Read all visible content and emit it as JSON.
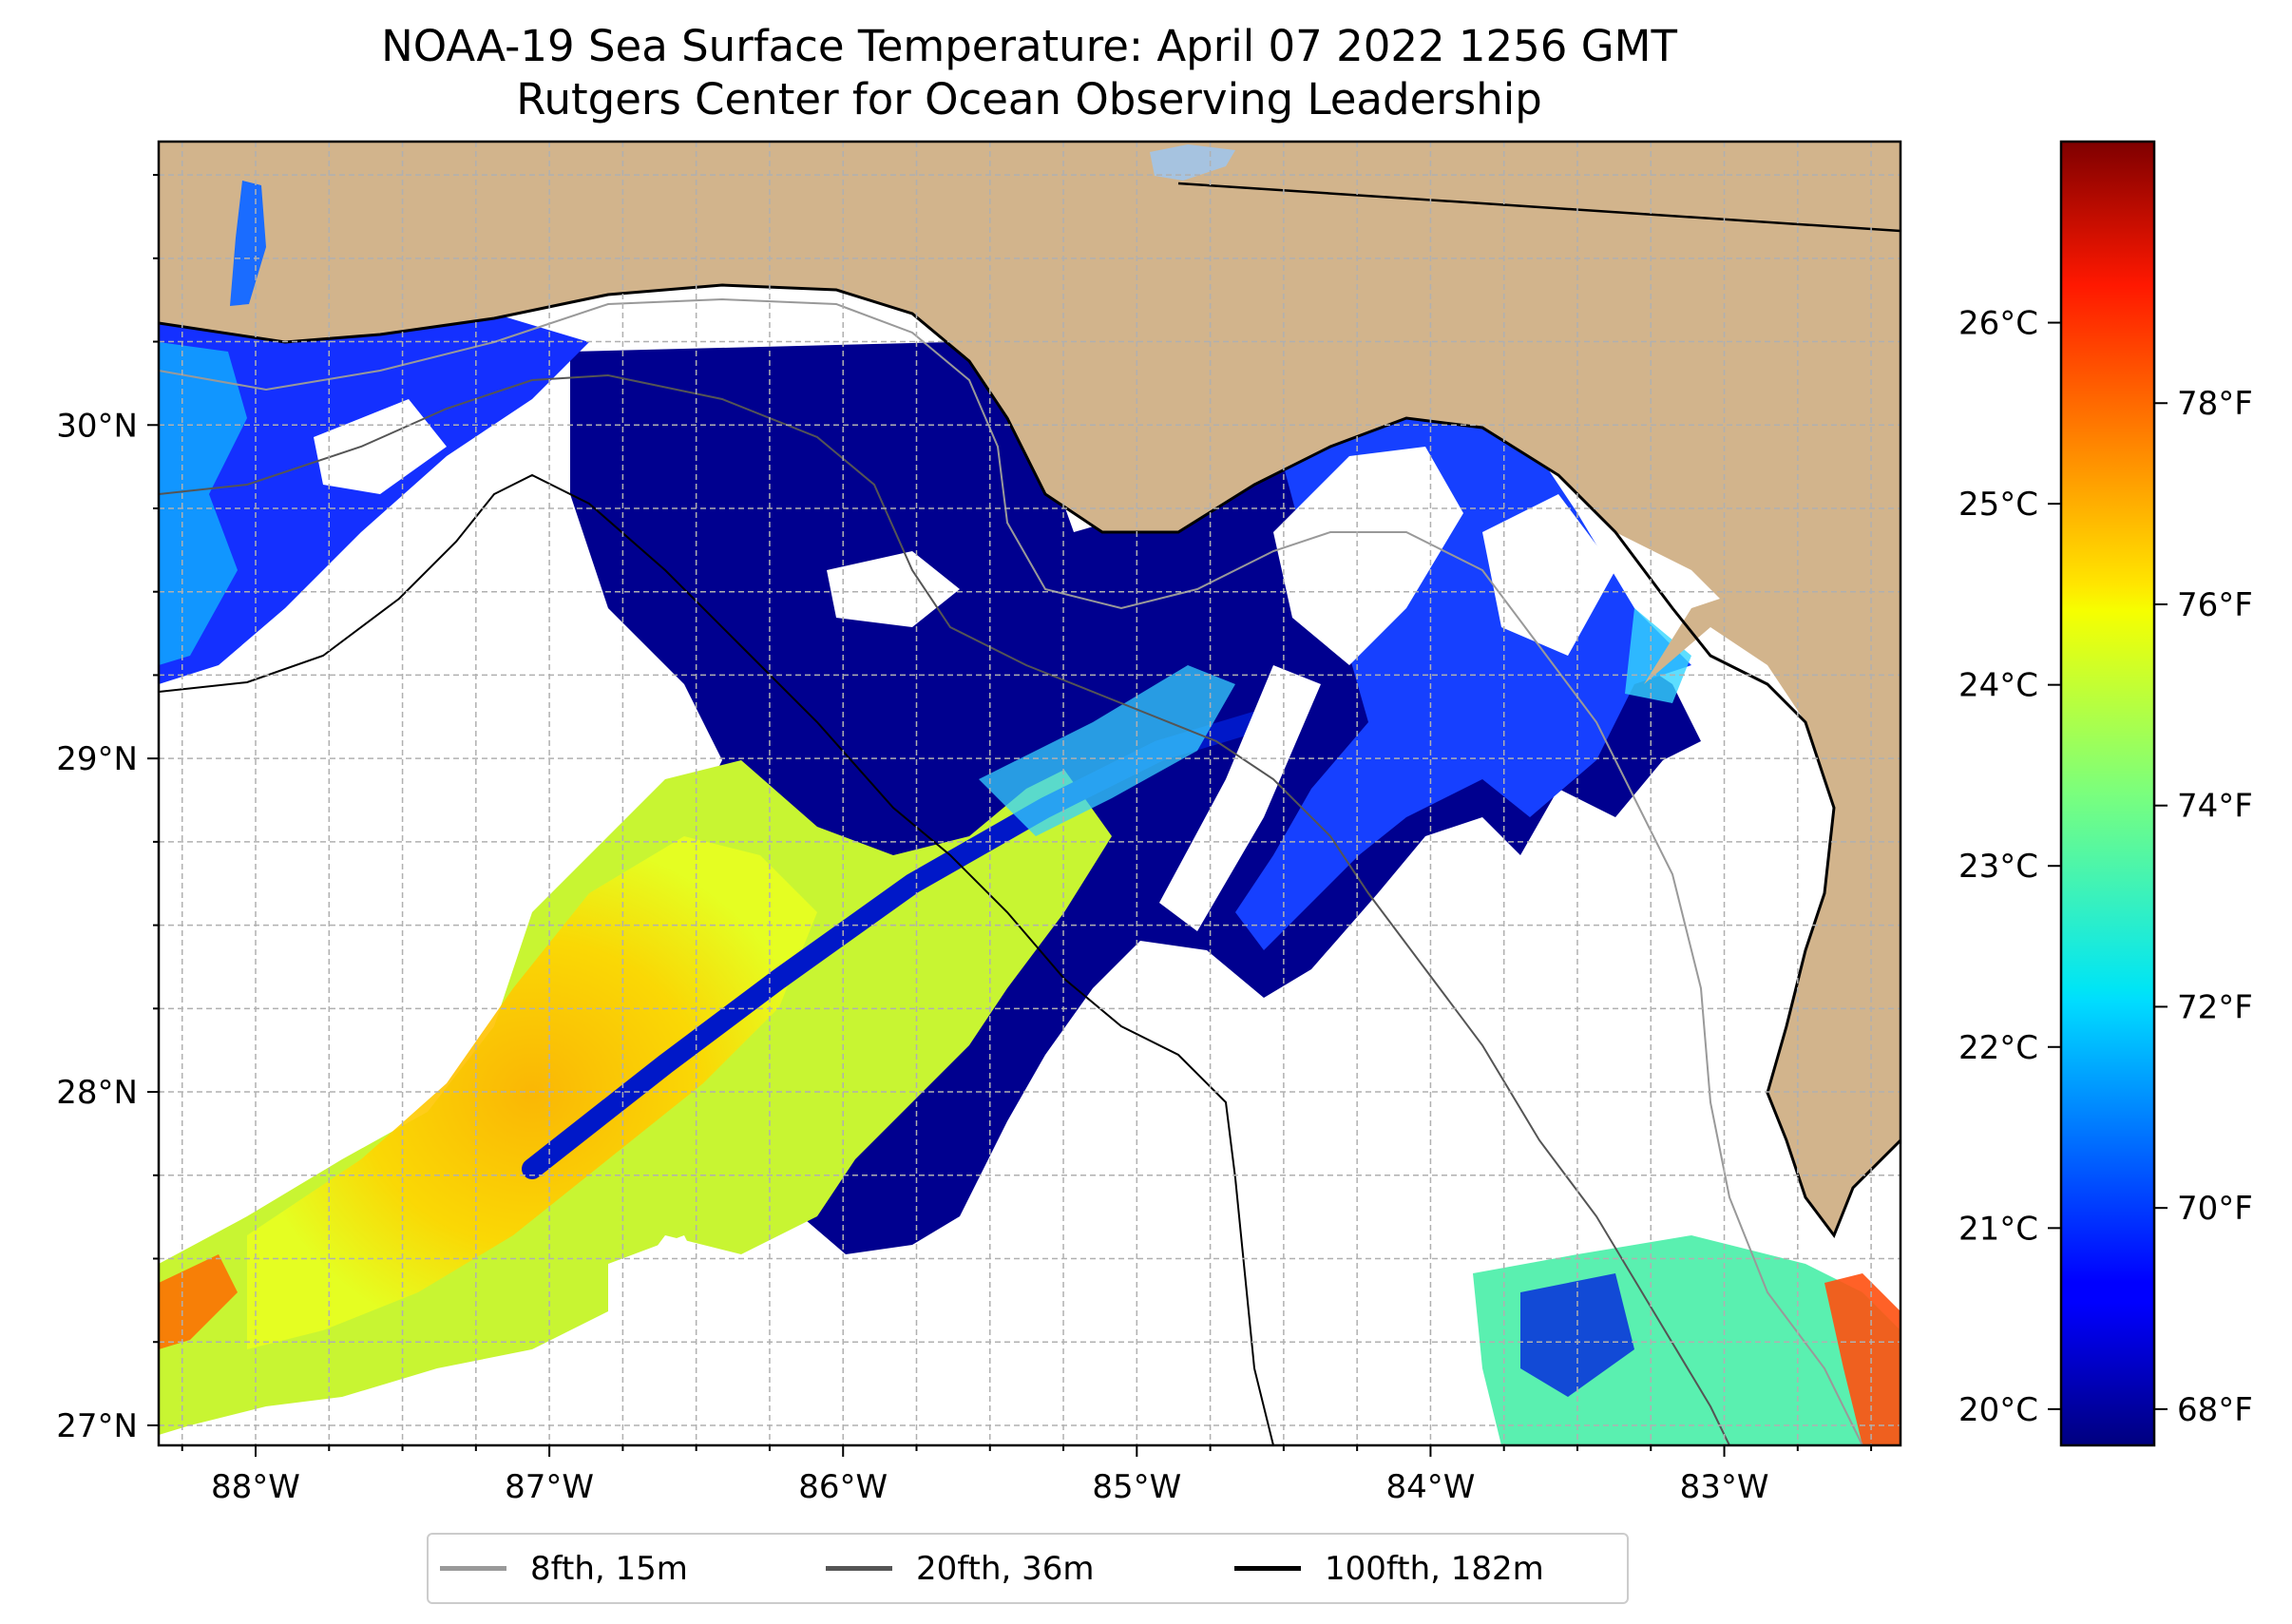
{
  "title": {
    "line1": "NOAA-19 Sea Surface Temperature: April 07 2022 1256 GMT",
    "line2": "Rutgers Center for Ocean Observing Leadership"
  },
  "map": {
    "lon_range": [
      -88.33,
      -82.4
    ],
    "lat_range": [
      26.94,
      30.85
    ],
    "x_ticks": [
      "88°W",
      "87°W",
      "86°W",
      "85°W",
      "84°W",
      "83°W"
    ],
    "x_tick_values": [
      -88,
      -87,
      -86,
      -85,
      -84,
      -83
    ],
    "y_ticks": [
      "27°N",
      "28°N",
      "29°N",
      "30°N"
    ],
    "y_tick_values": [
      27,
      28,
      29,
      30
    ],
    "gridlines": true,
    "colors": {
      "land": "#d2b48c",
      "no_data": "#ffffff",
      "grid": "#b0b0b0",
      "water_body": "#a6c3e0"
    }
  },
  "colorbar": {
    "colormap": "jet",
    "celsius_range": [
      19.8,
      27.0
    ],
    "celsius_ticks": [
      "20°C",
      "21°C",
      "22°C",
      "23°C",
      "24°C",
      "25°C",
      "26°C"
    ],
    "celsius_tick_values": [
      20,
      21,
      22,
      23,
      24,
      25,
      26
    ],
    "fahrenheit_ticks": [
      "68°F",
      "70°F",
      "72°F",
      "74°F",
      "76°F",
      "78°F"
    ],
    "fahrenheit_tick_values": [
      68,
      70,
      72,
      74,
      76,
      78
    ]
  },
  "legend": {
    "placement": "bottom-center",
    "items": [
      {
        "label": "8fth, 15m",
        "color": "#999999"
      },
      {
        "label": "20fth, 36m",
        "color": "#555555"
      },
      {
        "label": "100fth, 182m",
        "color": "#000000"
      }
    ]
  }
}
